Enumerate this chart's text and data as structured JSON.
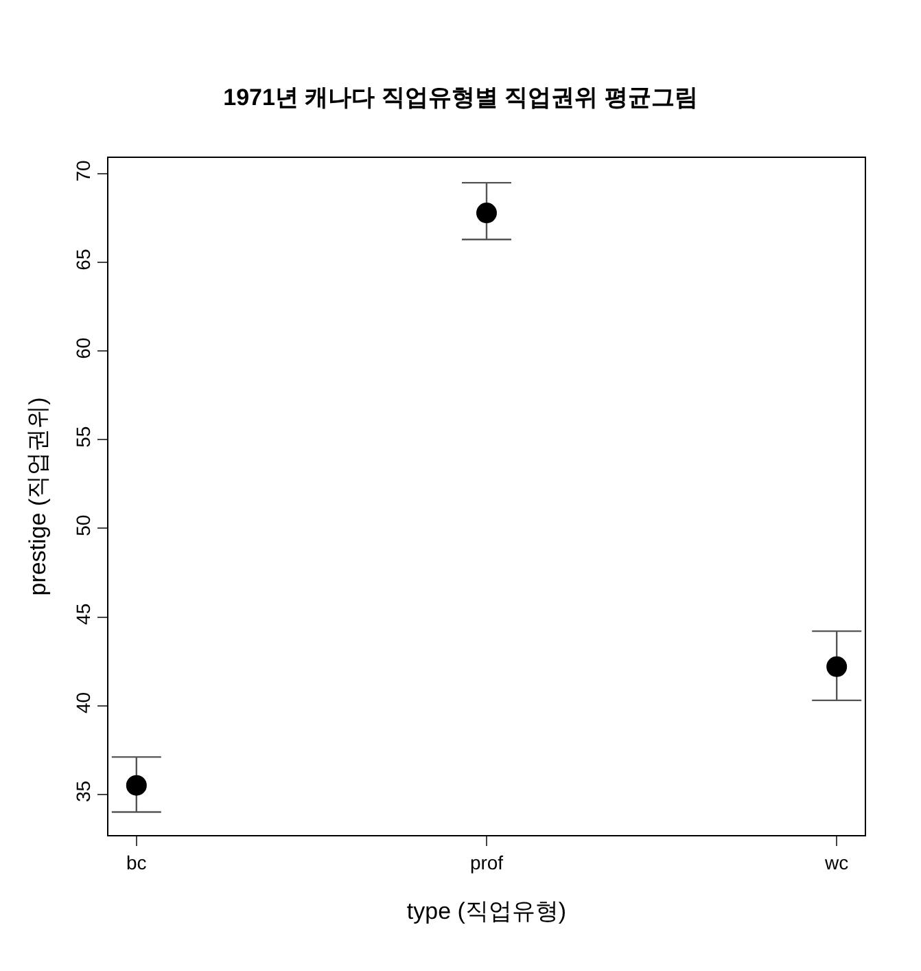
{
  "chart_data": {
    "type": "scatter",
    "title": "1971년 캐나다 직업유형별 직업권위 평균그림",
    "xlabel": "type (직업유형)",
    "ylabel": "prestige (직업권위)",
    "categories": [
      "bc",
      "prof",
      "wc"
    ],
    "values": [
      35.5,
      67.8,
      42.2
    ],
    "errors": [
      [
        34.0,
        37.1
      ],
      [
        66.3,
        69.5
      ],
      [
        40.3,
        44.2
      ]
    ],
    "color": "#000000",
    "marker": "circle",
    "ylim": [
      32.7,
      70.9
    ],
    "yticks": [
      35,
      40,
      45,
      50,
      55,
      60,
      65,
      70
    ]
  }
}
